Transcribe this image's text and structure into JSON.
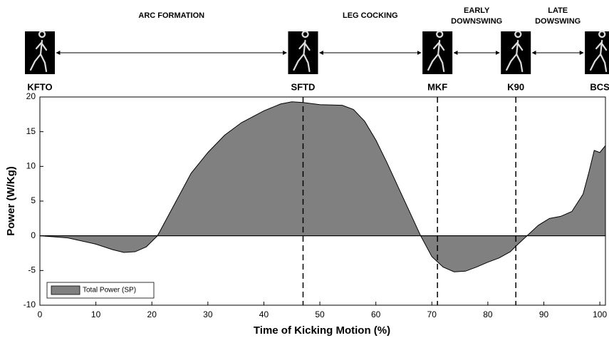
{
  "chart_data": {
    "type": "area",
    "xlabel": "Time of Kicking Motion (%)",
    "ylabel": "Power (W/Kg)",
    "x": [
      0,
      5,
      10,
      13,
      15,
      17,
      19,
      21,
      23,
      25,
      27,
      30,
      33,
      36,
      40,
      43,
      45,
      47,
      50,
      54,
      56,
      58,
      60,
      62,
      64,
      66,
      68,
      70,
      72,
      74,
      76,
      78,
      80,
      82,
      84,
      85,
      87,
      89,
      91,
      93,
      95,
      97,
      98,
      99,
      100,
      101
    ],
    "series": [
      {
        "name": "Total Power (SP)",
        "color": "#808080",
        "values": [
          0,
          -0.3,
          -1.2,
          -2,
          -2.4,
          -2.3,
          -1.6,
          0,
          3,
          6,
          9,
          12,
          14.5,
          16.3,
          18,
          19,
          19.3,
          19.2,
          18.9,
          18.8,
          18.2,
          16.5,
          13.8,
          10.5,
          7,
          3.5,
          0,
          -3,
          -4.5,
          -5.2,
          -5.1,
          -4.5,
          -3.8,
          -3.2,
          -2.3,
          -1.5,
          0,
          1.5,
          2.5,
          2.8,
          3.5,
          6,
          9,
          12.3,
          12,
          13
        ]
      }
    ],
    "xlim": [
      0,
      101
    ],
    "ylim": [
      -10,
      20
    ],
    "xticks": [
      0,
      10,
      20,
      30,
      40,
      50,
      60,
      70,
      80,
      90,
      100
    ],
    "yticks": [
      -10,
      -5,
      0,
      5,
      10,
      15,
      20
    ],
    "legend": "lower left",
    "markers": [
      {
        "label": "KFTO",
        "x": 0,
        "dashed": false
      },
      {
        "label": "SFTD",
        "x": 47,
        "dashed": true
      },
      {
        "label": "MKF",
        "x": 71,
        "dashed": true
      },
      {
        "label": "K90",
        "x": 85,
        "dashed": true
      },
      {
        "label": "BCS",
        "x": 100,
        "dashed": false
      }
    ],
    "phases": [
      {
        "lines": [
          "ARC FORMATION"
        ],
        "from": 0,
        "to": 47
      },
      {
        "lines": [
          "LEG COCKING"
        ],
        "from": 47,
        "to": 71
      },
      {
        "lines": [
          "EARLY",
          "DOWNSWING"
        ],
        "from": 71,
        "to": 85
      },
      {
        "lines": [
          "LATE",
          "DOWSWING"
        ],
        "from": 85,
        "to": 100
      }
    ]
  }
}
